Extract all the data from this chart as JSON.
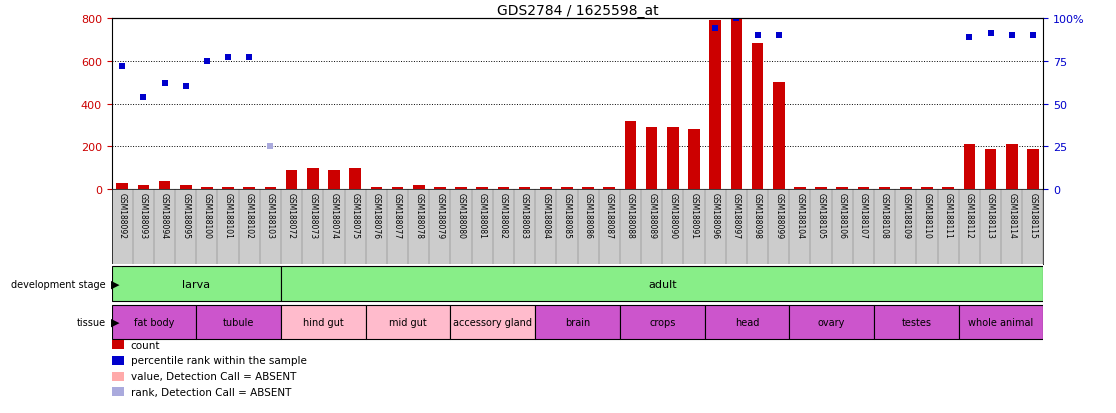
{
  "title": "GDS2784 / 1625598_at",
  "samples": [
    "GSM188092",
    "GSM188093",
    "GSM188094",
    "GSM188095",
    "GSM188100",
    "GSM188101",
    "GSM188102",
    "GSM188103",
    "GSM188072",
    "GSM188073",
    "GSM188074",
    "GSM188075",
    "GSM188076",
    "GSM188077",
    "GSM188078",
    "GSM188079",
    "GSM188080",
    "GSM188081",
    "GSM188082",
    "GSM188083",
    "GSM188084",
    "GSM188085",
    "GSM188086",
    "GSM188087",
    "GSM188088",
    "GSM188089",
    "GSM188090",
    "GSM188091",
    "GSM188096",
    "GSM188097",
    "GSM188098",
    "GSM188099",
    "GSM188104",
    "GSM188105",
    "GSM188106",
    "GSM188107",
    "GSM188108",
    "GSM188109",
    "GSM188110",
    "GSM188111",
    "GSM188112",
    "GSM188113",
    "GSM188114",
    "GSM188115"
  ],
  "count_values": [
    30,
    20,
    40,
    20,
    10,
    10,
    10,
    10,
    90,
    100,
    90,
    100,
    10,
    10,
    20,
    10,
    10,
    10,
    10,
    10,
    10,
    10,
    10,
    10,
    320,
    290,
    290,
    280,
    790,
    800,
    680,
    500,
    10,
    10,
    10,
    10,
    10,
    10,
    10,
    10,
    210,
    190,
    210,
    190
  ],
  "count_is_absent": [
    false,
    false,
    false,
    false,
    false,
    false,
    false,
    false,
    false,
    false,
    false,
    false,
    false,
    false,
    false,
    false,
    false,
    false,
    false,
    false,
    false,
    false,
    false,
    false,
    false,
    false,
    false,
    false,
    false,
    false,
    false,
    false,
    false,
    false,
    false,
    false,
    false,
    false,
    false,
    false,
    false,
    false,
    false,
    false
  ],
  "rank_values_pct": [
    72,
    54,
    62,
    60,
    75,
    77,
    77,
    null,
    null,
    null,
    null,
    null,
    null,
    null,
    null,
    null,
    null,
    null,
    null,
    null,
    null,
    null,
    null,
    null,
    null,
    null,
    null,
    null,
    94,
    100,
    90,
    90,
    null,
    null,
    null,
    null,
    null,
    null,
    null,
    null,
    89,
    91,
    90,
    90
  ],
  "rank_is_absent": [
    false,
    false,
    false,
    false,
    false,
    false,
    false,
    false,
    false,
    false,
    false,
    false,
    false,
    false,
    false,
    false,
    false,
    false,
    false,
    false,
    false,
    false,
    false,
    false,
    false,
    false,
    false,
    false,
    false,
    false,
    false,
    false,
    false,
    false,
    false,
    false,
    false,
    false,
    false,
    false,
    false,
    false,
    false,
    false
  ],
  "absent_rank_pct": [
    null,
    null,
    null,
    null,
    null,
    null,
    null,
    25,
    null,
    null,
    null,
    null,
    null,
    null,
    null,
    null,
    null,
    null,
    null,
    null,
    null,
    null,
    null,
    null,
    null,
    null,
    null,
    null,
    null,
    null,
    null,
    null,
    null,
    null,
    null,
    null,
    null,
    null,
    null,
    null,
    null,
    null,
    null,
    null
  ],
  "absent_count_values": [
    null,
    null,
    null,
    null,
    null,
    null,
    null,
    null,
    null,
    null,
    null,
    null,
    null,
    null,
    null,
    null,
    null,
    null,
    null,
    null,
    null,
    null,
    null,
    null,
    null,
    null,
    null,
    null,
    null,
    null,
    null,
    null,
    null,
    null,
    null,
    null,
    null,
    null,
    null,
    null,
    null,
    null,
    null,
    null
  ],
  "dev_stage_groups": [
    {
      "label": "larva",
      "start": 0,
      "end": 8
    },
    {
      "label": "adult",
      "start": 8,
      "end": 44
    }
  ],
  "tissue_groups": [
    {
      "label": "fat body",
      "start": 0,
      "end": 4,
      "color": "#CC55CC"
    },
    {
      "label": "tubule",
      "start": 4,
      "end": 8,
      "color": "#CC55CC"
    },
    {
      "label": "hind gut",
      "start": 8,
      "end": 12,
      "color": "#FFBBCC"
    },
    {
      "label": "mid gut",
      "start": 12,
      "end": 16,
      "color": "#FFBBCC"
    },
    {
      "label": "accessory gland",
      "start": 16,
      "end": 20,
      "color": "#FFBBCC"
    },
    {
      "label": "brain",
      "start": 20,
      "end": 24,
      "color": "#CC55CC"
    },
    {
      "label": "crops",
      "start": 24,
      "end": 28,
      "color": "#CC55CC"
    },
    {
      "label": "head",
      "start": 28,
      "end": 32,
      "color": "#CC55CC"
    },
    {
      "label": "ovary",
      "start": 32,
      "end": 36,
      "color": "#CC55CC"
    },
    {
      "label": "testes",
      "start": 36,
      "end": 40,
      "color": "#CC55CC"
    },
    {
      "label": "whole animal",
      "start": 40,
      "end": 44,
      "color": "#CC55CC"
    }
  ],
  "ylim_left": [
    0,
    800
  ],
  "ylim_right": [
    0,
    100
  ],
  "yticks_left": [
    0,
    200,
    400,
    600,
    800
  ],
  "yticks_right": [
    0,
    25,
    50,
    75,
    100
  ],
  "dotted_lines": [
    200,
    400,
    600
  ],
  "color_count": "#CC0000",
  "color_rank": "#0000CC",
  "color_absent_count": "#FFAAAA",
  "color_absent_rank": "#AAAADD",
  "bar_width": 0.55,
  "dev_stage_color": "#88EE88",
  "sample_label_bg": "#CCCCCC",
  "legend_items": [
    {
      "color": "#CC0000",
      "label": "count"
    },
    {
      "color": "#0000CC",
      "label": "percentile rank within the sample"
    },
    {
      "color": "#FFAAAA",
      "label": "value, Detection Call = ABSENT"
    },
    {
      "color": "#AAAADD",
      "label": "rank, Detection Call = ABSENT"
    }
  ]
}
